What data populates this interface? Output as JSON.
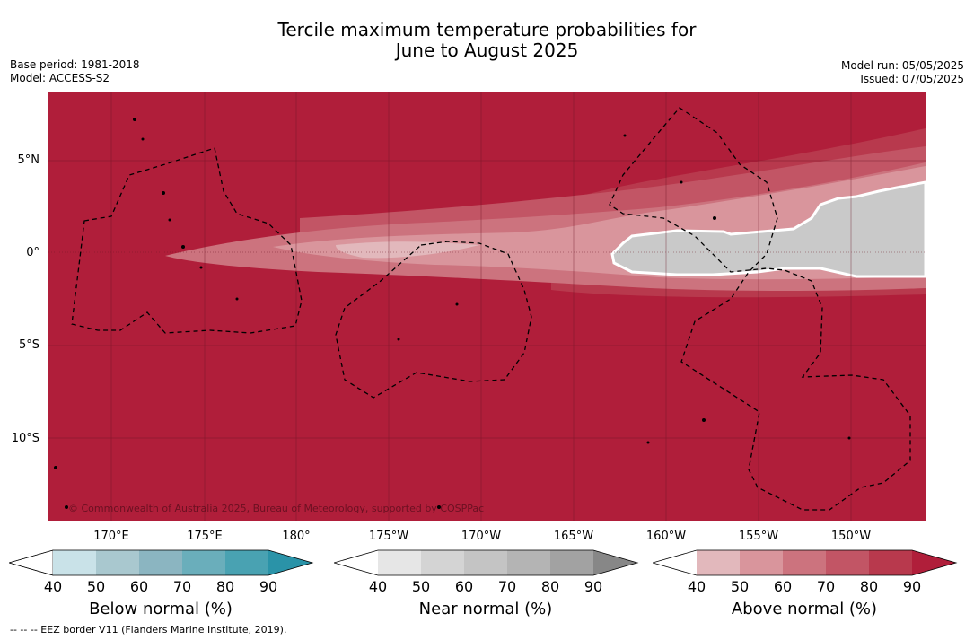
{
  "title_line1": "Tercile maximum temperature probabilities for",
  "title_line2": "June to August 2025",
  "meta_left": {
    "base_period": "Base period: 1981-2018",
    "model": "Model: ACCESS-S2"
  },
  "meta_right": {
    "model_run": "Model run: 05/05/2025",
    "issued": "Issued: 07/05/2025"
  },
  "lat_labels": [
    "5°N",
    "0°",
    "5°S",
    "10°S"
  ],
  "lon_labels": [
    "170°E",
    "175°E",
    "180°",
    "175°W",
    "170°W",
    "165°W",
    "160°W",
    "155°W",
    "150°W"
  ],
  "copyright": "© Commonwealth of Australia 2025, Bureau of Meteorology, supported by COSPPac",
  "colorbars": [
    {
      "name": "below",
      "label": "Below normal (%)",
      "ticks": [
        "40",
        "50",
        "60",
        "70",
        "80",
        "90"
      ],
      "colors": [
        "#ffffff",
        "#c9e2e8",
        "#a9c8cf",
        "#8bb5c1",
        "#6aaebb",
        "#49a2b2",
        "#2a93a8"
      ]
    },
    {
      "name": "near",
      "label": "Near normal (%)",
      "ticks": [
        "40",
        "50",
        "60",
        "70",
        "80",
        "90"
      ],
      "colors": [
        "#ffffff",
        "#e6e6e6",
        "#d4d4d4",
        "#c4c4c4",
        "#b4b4b4",
        "#a2a2a2",
        "#878787"
      ]
    },
    {
      "name": "above",
      "label": "Above normal (%)",
      "ticks": [
        "40",
        "50",
        "60",
        "70",
        "80",
        "90"
      ],
      "colors": [
        "#ffffff",
        "#e2b8bc",
        "#d9959c",
        "#cc737e",
        "#c25565",
        "#b8394d",
        "#b01e3a"
      ]
    }
  ],
  "footer": "--  --  -- EEZ border V11 (Flanders Marine Institute, 2019).",
  "map_colors": {
    "above90": "#b01e3a",
    "above80": "#b8394d",
    "above70": "#c25565",
    "above60": "#cc737e",
    "above50": "#d9959c",
    "near": "#c9c9c9"
  }
}
